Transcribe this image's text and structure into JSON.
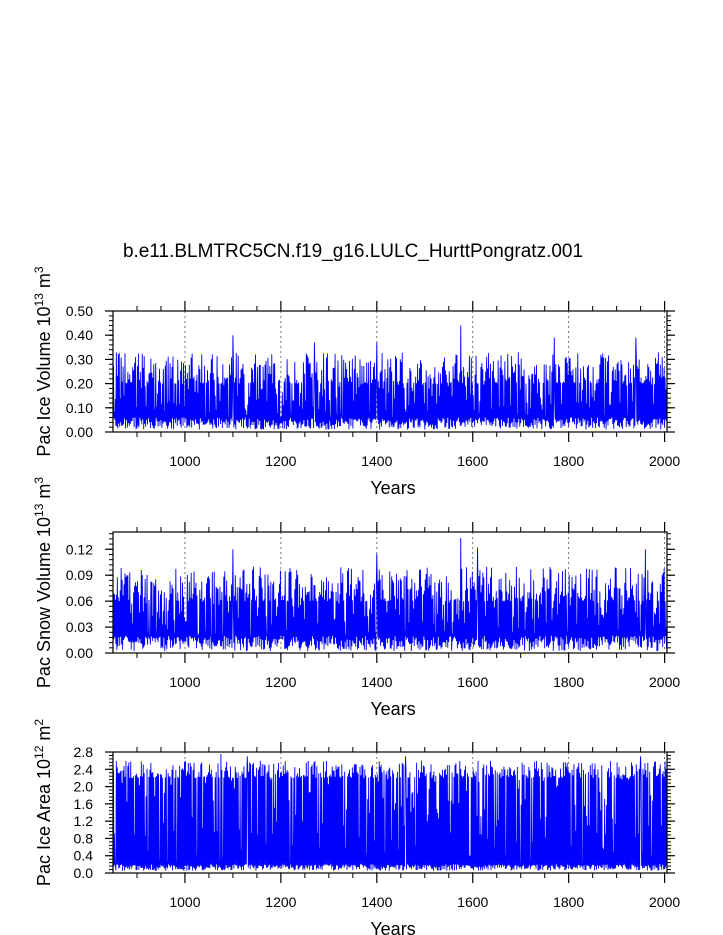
{
  "title": "b.e11.BLMTRC5CN.f19_g16.LULC_HurttPongratz.001",
  "colors": {
    "series": "#0000ff",
    "grid": "#555555",
    "axes": "#000000"
  },
  "chart_data": [
    {
      "type": "line",
      "panel": "ice-volume",
      "ylabel_prefix": "Pac Ice Volume 10",
      "ylabel_exp": "13",
      "ylabel_unit": " m",
      "ylabel_unit_exp": "3",
      "xlabel": "Years",
      "xlim": [
        850,
        2005
      ],
      "ylim": [
        0,
        0.5
      ],
      "x_ticks": [
        1000,
        1200,
        1400,
        1600,
        1800,
        2000
      ],
      "y_ticks": [
        0.0,
        0.1,
        0.2,
        0.3,
        0.4,
        0.5
      ],
      "y_tick_labels": [
        "0.00",
        "0.10",
        "0.20",
        "0.30",
        "0.40",
        "0.50"
      ],
      "x_grid": "dashed",
      "series": [
        {
          "x_range": [
            850,
            2005
          ],
          "baseline": 0.01,
          "low_max": 0.06,
          "upper_typical": [
            0.2,
            0.33
          ],
          "peaks": [
            [
              1100,
              0.4
            ],
            [
              1270,
              0.37
            ],
            [
              1400,
              0.37
            ],
            [
              1575,
              0.44
            ],
            [
              1770,
              0.39
            ],
            [
              1940,
              0.39
            ]
          ]
        }
      ]
    },
    {
      "type": "line",
      "panel": "snow-volume",
      "ylabel_prefix": "Pac Snow Volume 10",
      "ylabel_exp": "13",
      "ylabel_unit": " m",
      "ylabel_unit_exp": "3",
      "xlabel": "Years",
      "xlim": [
        850,
        2005
      ],
      "ylim": [
        0,
        0.14
      ],
      "x_ticks": [
        1000,
        1200,
        1400,
        1600,
        1800,
        2000
      ],
      "y_ticks": [
        0.0,
        0.03,
        0.06,
        0.09,
        0.12
      ],
      "y_tick_labels": [
        "0.00",
        "0.03",
        "0.06",
        "0.09",
        "0.12"
      ],
      "x_grid": "dashed",
      "series": [
        {
          "x_range": [
            850,
            2005
          ],
          "baseline": 0.002,
          "low_max": 0.02,
          "upper_typical": [
            0.06,
            0.1
          ],
          "peaks": [
            [
              1100,
              0.12
            ],
            [
              1400,
              0.115
            ],
            [
              1575,
              0.133
            ],
            [
              1610,
              0.122
            ],
            [
              1960,
              0.12
            ]
          ]
        }
      ]
    },
    {
      "type": "line",
      "panel": "ice-area",
      "ylabel_prefix": "Pac Ice Area 10",
      "ylabel_exp": "12",
      "ylabel_unit": " m",
      "ylabel_unit_exp": "2",
      "xlabel": "Years",
      "xlim": [
        850,
        2005
      ],
      "ylim": [
        0,
        2.8
      ],
      "x_ticks": [
        1000,
        1200,
        1400,
        1600,
        1800,
        2000
      ],
      "y_ticks": [
        0.0,
        0.4,
        0.8,
        1.2,
        1.6,
        2.0,
        2.4,
        2.8
      ],
      "y_tick_labels": [
        "0.0",
        "0.4",
        "0.8",
        "1.2",
        "1.6",
        "2.0",
        "2.4",
        "2.8"
      ],
      "x_grid": "dashed",
      "series": [
        {
          "x_range": [
            850,
            2005
          ],
          "baseline": 0.05,
          "low_max": 0.2,
          "upper_typical": [
            2.2,
            2.6
          ],
          "peaks": [
            [
              1075,
              2.75
            ],
            [
              1130,
              2.7
            ],
            [
              1460,
              2.7
            ],
            [
              1950,
              2.7
            ]
          ]
        }
      ]
    }
  ]
}
